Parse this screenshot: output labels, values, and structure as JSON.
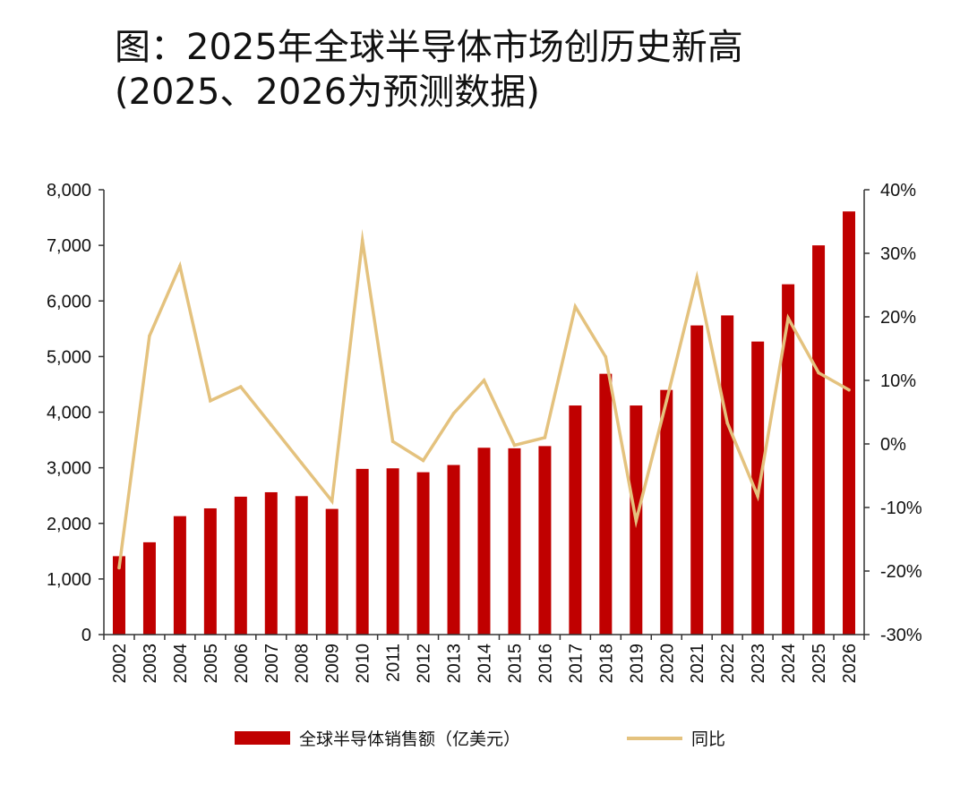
{
  "title": {
    "line1": "图：2025年全球半导体市场创历史新高",
    "line2": "(2025、2026为预测数据)"
  },
  "chart_data": {
    "type": "bar",
    "categories": [
      "2002",
      "2003",
      "2004",
      "2005",
      "2006",
      "2007",
      "2008",
      "2009",
      "2010",
      "2011",
      "2012",
      "2013",
      "2014",
      "2015",
      "2016",
      "2017",
      "2018",
      "2019",
      "2020",
      "2021",
      "2022",
      "2023",
      "2024",
      "2025",
      "2026"
    ],
    "series": [
      {
        "name": "全球半导体销售额（亿美元）",
        "type": "bar",
        "axis": "left",
        "color": "#C00000",
        "values": [
          1410,
          1660,
          2130,
          2270,
          2480,
          2560,
          2490,
          2260,
          2980,
          2990,
          2920,
          3050,
          3360,
          3350,
          3390,
          4120,
          4690,
          4120,
          4400,
          5560,
          5740,
          5270,
          6300,
          7000,
          7610
        ]
      },
      {
        "name": "同比",
        "type": "line",
        "axis": "right",
        "color": "#E4C27E",
        "values": [
          -19.5,
          17,
          28,
          6.8,
          9,
          3,
          -3,
          -9,
          32,
          0.4,
          -2.6,
          4.8,
          10,
          -0.2,
          1,
          21.6,
          13.7,
          -12.1,
          6.8,
          26.2,
          3.3,
          -8.2,
          19.8,
          11.2,
          8.5
        ]
      }
    ],
    "y_left": {
      "min": 0,
      "max": 8000,
      "ticks": [
        "0",
        "1,000",
        "2,000",
        "3,000",
        "4,000",
        "5,000",
        "6,000",
        "7,000",
        "8,000"
      ]
    },
    "y_right": {
      "min": -30,
      "max": 40,
      "ticks": [
        "-30%",
        "-20%",
        "-10%",
        "0%",
        "10%",
        "20%",
        "30%",
        "40%"
      ]
    },
    "grid": false,
    "legend_position": "bottom"
  }
}
